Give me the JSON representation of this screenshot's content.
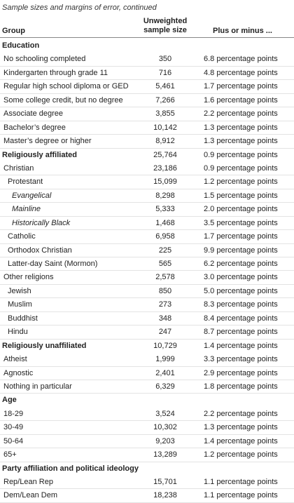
{
  "caption": "Sample sizes and margins of error, continued",
  "headers": {
    "group": "Group",
    "n_line1": "Unweighted",
    "n_line2": "sample size",
    "moe": "Plus or minus ..."
  },
  "rows": [
    {
      "g": "Education",
      "n": "",
      "m": "",
      "type": "section"
    },
    {
      "g": "No schooling completed",
      "n": "350",
      "m": "6.8 percentage points",
      "type": "item"
    },
    {
      "g": "Kindergarten through grade 11",
      "n": "716",
      "m": "4.8 percentage points",
      "type": "item"
    },
    {
      "g": "Regular high school diploma or GED",
      "n": "5,461",
      "m": "1.7 percentage points",
      "type": "item"
    },
    {
      "g": "Some college credit, but no degree",
      "n": "7,266",
      "m": "1.6 percentage points",
      "type": "item"
    },
    {
      "g": "Associate degree",
      "n": "3,855",
      "m": "2.2 percentage points",
      "type": "item"
    },
    {
      "g": "Bachelor’s degree",
      "n": "10,142",
      "m": "1.3 percentage points",
      "type": "item"
    },
    {
      "g": "Master’s degree or higher",
      "n": "8,912",
      "m": "1.3 percentage points",
      "type": "item"
    },
    {
      "g": "Religiously affiliated",
      "n": "25,764",
      "m": "0.9 percentage points",
      "type": "section"
    },
    {
      "g": "Christian",
      "n": "23,186",
      "m": "0.9 percentage points",
      "type": "item"
    },
    {
      "g": "Protestant",
      "n": "15,099",
      "m": "1.2 percentage points",
      "type": "indent1"
    },
    {
      "g": "Evangelical",
      "n": "8,298",
      "m": "1.5 percentage points",
      "type": "indent2"
    },
    {
      "g": "Mainline",
      "n": "5,333",
      "m": "2.0 percentage points",
      "type": "indent2"
    },
    {
      "g": "Historically Black",
      "n": "1,468",
      "m": "3.5 percentage points",
      "type": "indent2"
    },
    {
      "g": "Catholic",
      "n": "6,958",
      "m": "1.7 percentage points",
      "type": "indent1"
    },
    {
      "g": "Orthodox Christian",
      "n": "225",
      "m": "9.9 percentage points",
      "type": "indent1"
    },
    {
      "g": "Latter-day Saint (Mormon)",
      "n": "565",
      "m": "6.2 percentage points",
      "type": "indent1"
    },
    {
      "g": "Other religions",
      "n": "2,578",
      "m": "3.0 percentage points",
      "type": "item"
    },
    {
      "g": "Jewish",
      "n": "850",
      "m": "5.0 percentage points",
      "type": "indent1"
    },
    {
      "g": "Muslim",
      "n": "273",
      "m": "8.3 percentage points",
      "type": "indent1"
    },
    {
      "g": "Buddhist",
      "n": "348",
      "m": "8.4 percentage points",
      "type": "indent1"
    },
    {
      "g": "Hindu",
      "n": "247",
      "m": "8.7 percentage points",
      "type": "indent1"
    },
    {
      "g": "Religiously unaffiliated",
      "n": "10,729",
      "m": "1.4 percentage points",
      "type": "section"
    },
    {
      "g": "Atheist",
      "n": "1,999",
      "m": "3.3 percentage points",
      "type": "item"
    },
    {
      "g": "Agnostic",
      "n": "2,401",
      "m": "2.9 percentage points",
      "type": "item"
    },
    {
      "g": "Nothing in particular",
      "n": "6,329",
      "m": "1.8 percentage points",
      "type": "item"
    },
    {
      "g": "Age",
      "n": "",
      "m": "",
      "type": "section"
    },
    {
      "g": "18-29",
      "n": "3,524",
      "m": "2.2 percentage points",
      "type": "item"
    },
    {
      "g": "30-49",
      "n": "10,302",
      "m": "1.3 percentage points",
      "type": "item"
    },
    {
      "g": "50-64",
      "n": "9,203",
      "m": "1.4 percentage points",
      "type": "item"
    },
    {
      "g": "65+",
      "n": "13,289",
      "m": "1.2 percentage points",
      "type": "item"
    },
    {
      "g": "Party affiliation and political ideology",
      "n": "",
      "m": "",
      "type": "section"
    },
    {
      "g": "Rep/Lean Rep",
      "n": "15,701",
      "m": "1.1 percentage points",
      "type": "item"
    },
    {
      "g": "Dem/Lean Dem",
      "n": "18,238",
      "m": "1.1 percentage points",
      "type": "item"
    }
  ]
}
